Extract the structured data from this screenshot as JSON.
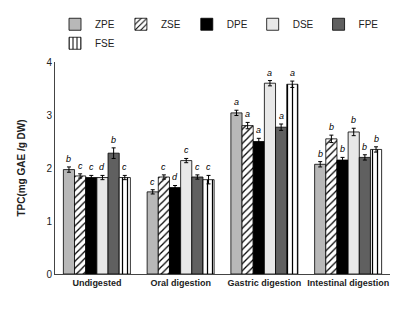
{
  "chart_data": {
    "type": "bar",
    "categories": [
      "Undigested",
      "Oral digestion",
      "Gastric digestion",
      "Intestinal digestion"
    ],
    "series": [
      {
        "name": "ZPE",
        "color": "#b8b8b8",
        "values": [
          1.97,
          1.55,
          3.04,
          2.07
        ],
        "errors": [
          0.05,
          0.04,
          0.05,
          0.05
        ],
        "letters": [
          "b",
          "c",
          "a",
          "b"
        ]
      },
      {
        "name": "ZSE",
        "color": "white",
        "values": [
          1.85,
          1.83,
          2.8,
          2.55
        ],
        "errors": [
          0.04,
          0.04,
          0.06,
          0.07
        ],
        "letters": [
          "c",
          "c",
          "a",
          "b"
        ]
      },
      {
        "name": "DPE",
        "color": "#000000",
        "values": [
          1.82,
          1.63,
          2.5,
          2.15
        ],
        "errors": [
          0.04,
          0.04,
          0.06,
          0.05
        ],
        "letters": [
          "c",
          "d",
          "a",
          "b"
        ]
      },
      {
        "name": "DSE",
        "color": "#e8e8e8",
        "values": [
          1.82,
          2.14,
          3.6,
          2.68
        ],
        "errors": [
          0.04,
          0.04,
          0.05,
          0.07
        ],
        "letters": [
          "d",
          "c",
          "a",
          "b"
        ]
      },
      {
        "name": "FPE",
        "color": "#606060",
        "values": [
          2.28,
          1.83,
          2.77,
          2.2
        ],
        "errors": [
          0.1,
          0.04,
          0.06,
          0.05
        ],
        "letters": [
          "b",
          "c",
          "a",
          "b"
        ]
      },
      {
        "name": "FSE",
        "color": "white",
        "values": [
          1.82,
          1.78,
          3.58,
          2.35
        ],
        "errors": [
          0.04,
          0.08,
          0.06,
          0.05
        ],
        "letters": [
          "c",
          "c",
          "a",
          "b"
        ]
      }
    ],
    "ylabel": "TPC(mg GAE /g DW)",
    "ylim": [
      0,
      4
    ],
    "yticks": [
      0,
      1,
      2,
      3,
      4
    ],
    "grid": false,
    "legend": "upper left"
  }
}
